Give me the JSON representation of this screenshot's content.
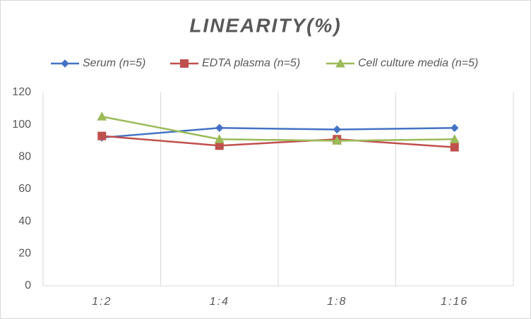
{
  "chart_data": {
    "type": "line",
    "title": "LINEARITY(%)",
    "categories": [
      "1:2",
      "1:4",
      "1:8",
      "1:16"
    ],
    "series": [
      {
        "name": "Serum (n=5)",
        "color": "#4472c4",
        "marker": "diamond",
        "values": [
          92,
          98,
          97,
          98
        ]
      },
      {
        "name": "EDTA plasma (n=5)",
        "color": "#c0504d",
        "marker": "square",
        "values": [
          93,
          87,
          91,
          86
        ]
      },
      {
        "name": "Cell culture media (n=5)",
        "color": "#9bbb59",
        "marker": "triangle",
        "values": [
          105,
          91,
          90,
          91
        ]
      }
    ],
    "ylim": [
      0,
      120
    ],
    "yticks": [
      0,
      20,
      40,
      60,
      80,
      100,
      120
    ],
    "legend": "top"
  }
}
